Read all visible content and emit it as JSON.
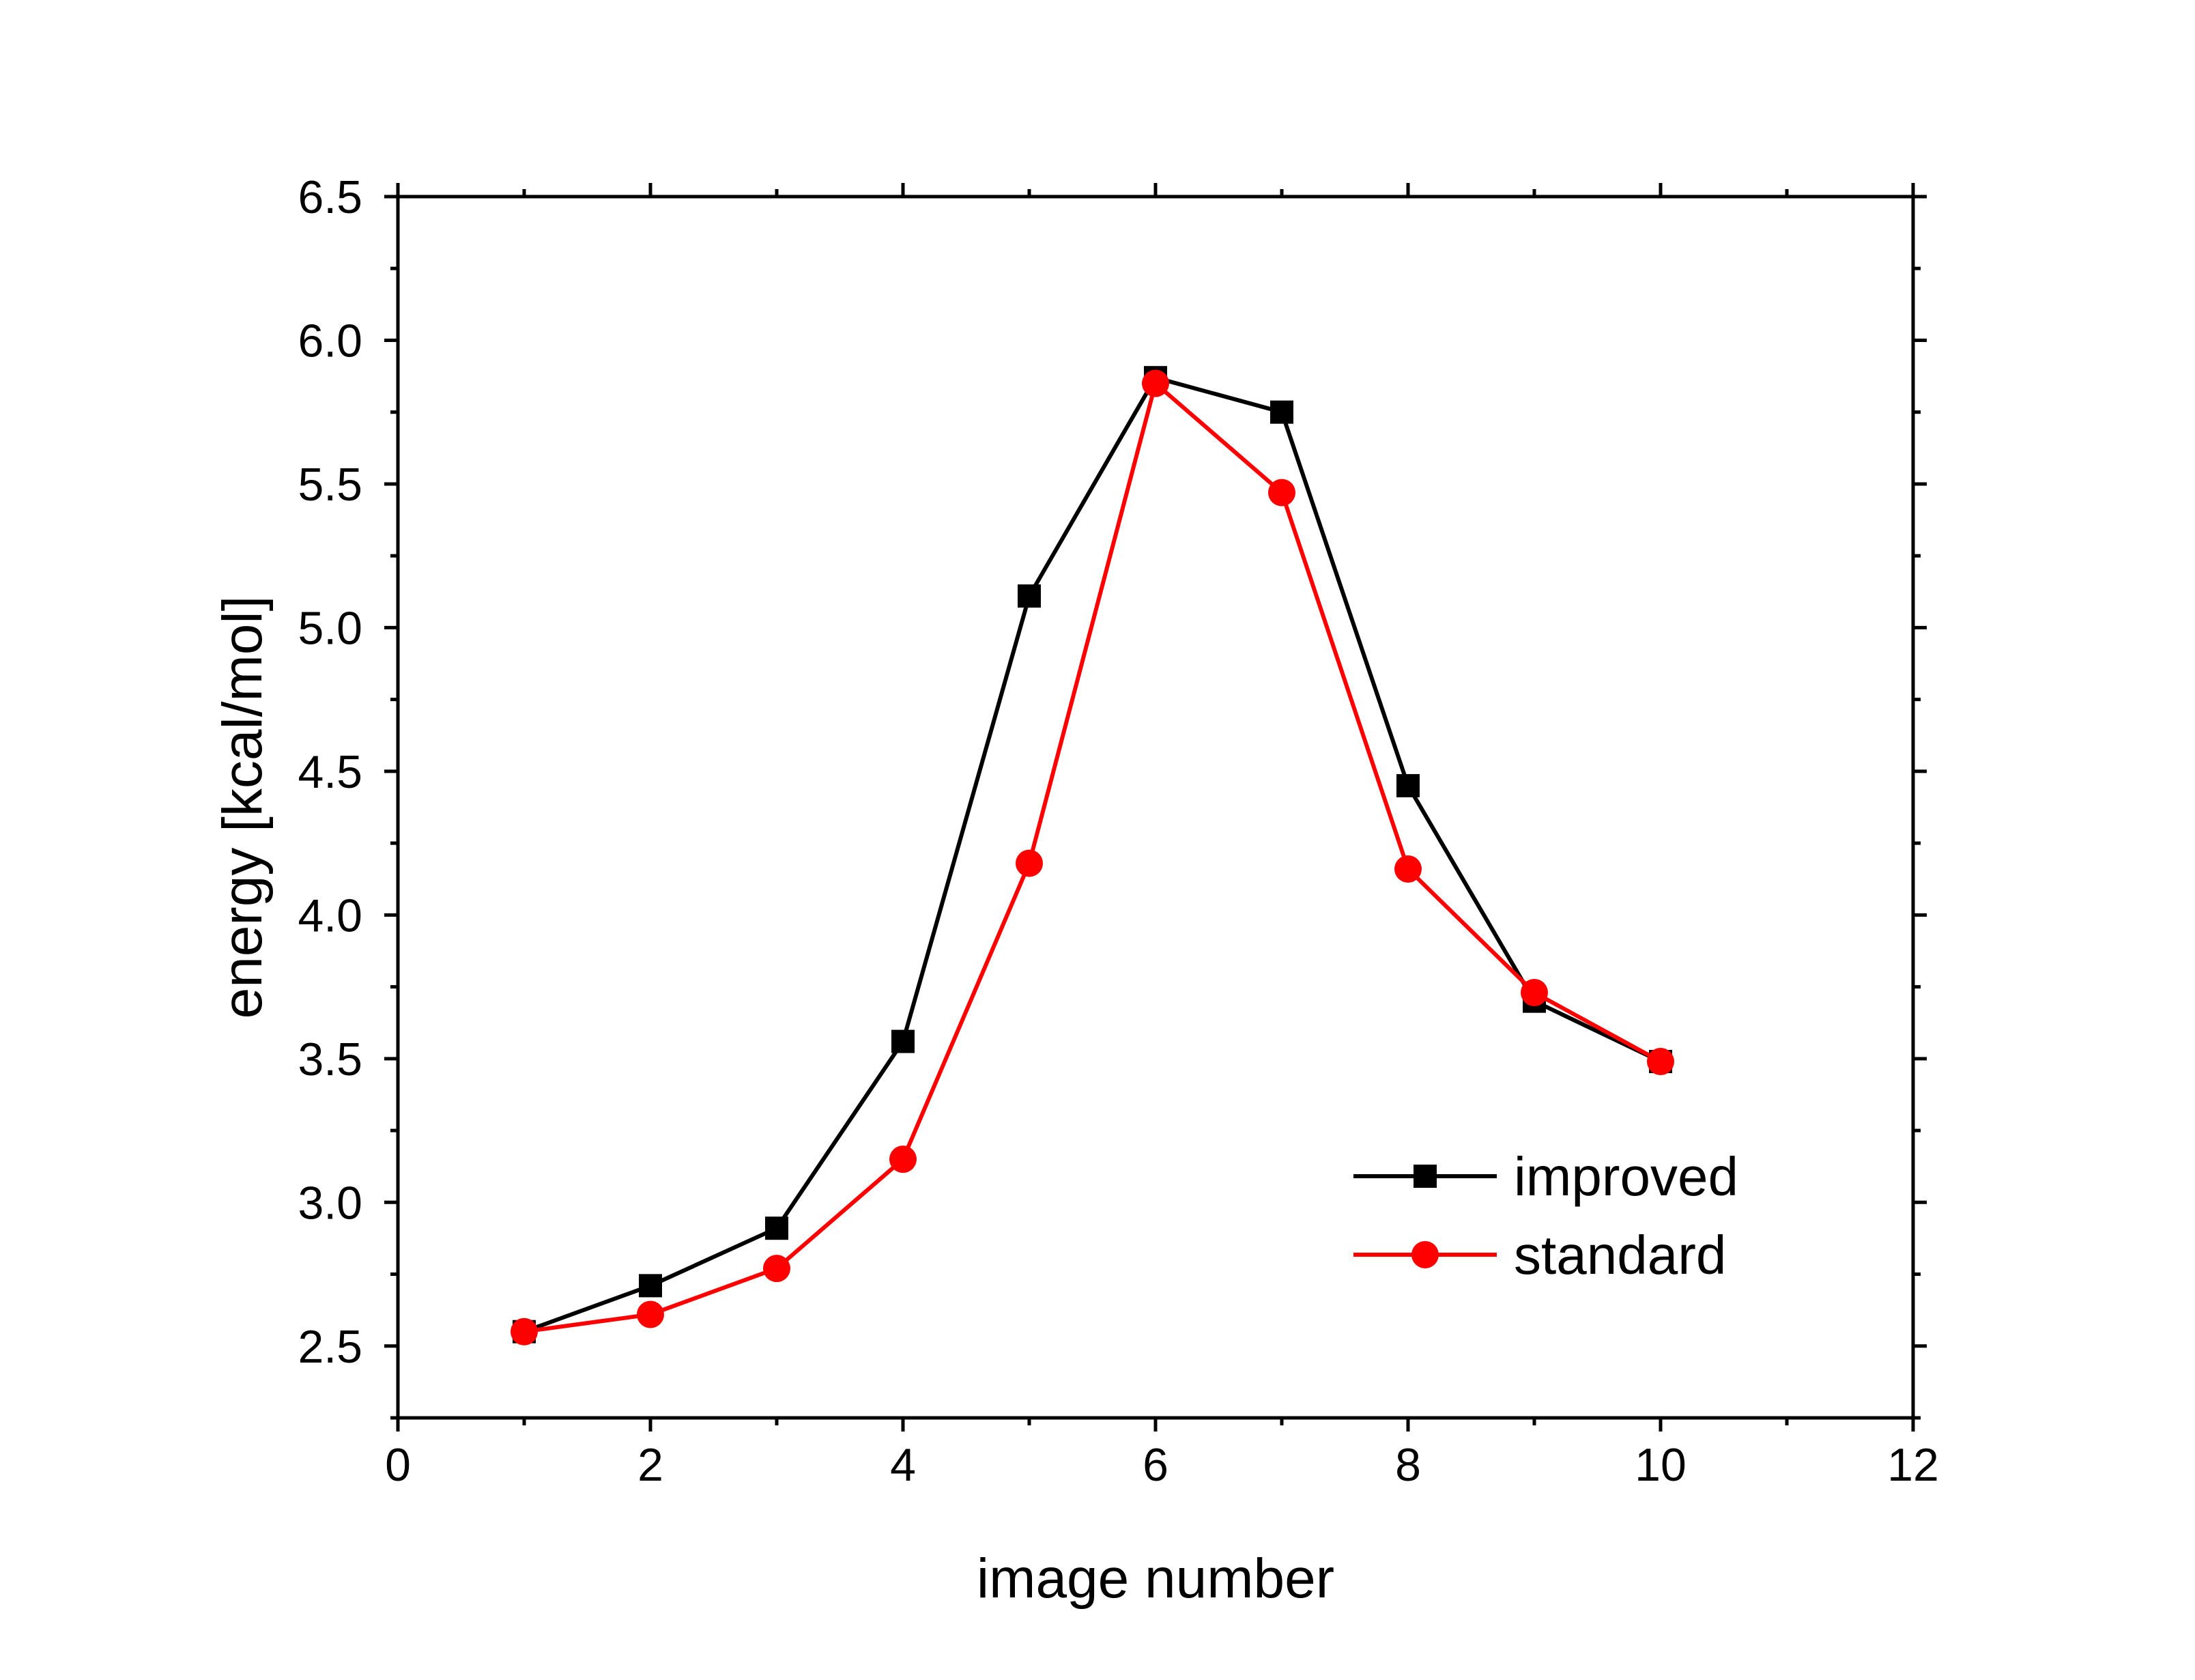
{
  "chart_data": {
    "type": "line",
    "title": "",
    "xlabel": "image number",
    "ylabel": "energy [kcal/mol]",
    "xlim": [
      0,
      12
    ],
    "ylim": [
      2.25,
      6.5
    ],
    "x_ticks": [
      0,
      2,
      4,
      6,
      8,
      10,
      12
    ],
    "x_tick_labels": [
      "0",
      "2",
      "4",
      "6",
      "8",
      "10",
      "12"
    ],
    "y_ticks": [
      2.5,
      3.0,
      3.5,
      4.0,
      4.5,
      5.0,
      5.5,
      6.0,
      6.5
    ],
    "y_tick_labels": [
      "2.5",
      "3.0",
      "3.5",
      "4.0",
      "4.5",
      "5.0",
      "5.5",
      "6.0",
      "6.5"
    ],
    "grid": false,
    "legend_position": "bottom-right",
    "x": [
      1,
      2,
      3,
      4,
      5,
      6,
      7,
      8,
      9,
      10
    ],
    "series": [
      {
        "name": "improved",
        "color": "#000000",
        "marker": "square",
        "values": [
          2.55,
          2.71,
          2.91,
          3.56,
          5.11,
          5.87,
          5.75,
          4.45,
          3.7,
          3.49
        ]
      },
      {
        "name": "standard",
        "color": "#ff0000",
        "marker": "circle",
        "values": [
          2.55,
          2.61,
          2.77,
          3.15,
          4.18,
          5.85,
          5.47,
          4.16,
          3.73,
          3.49
        ]
      }
    ]
  }
}
